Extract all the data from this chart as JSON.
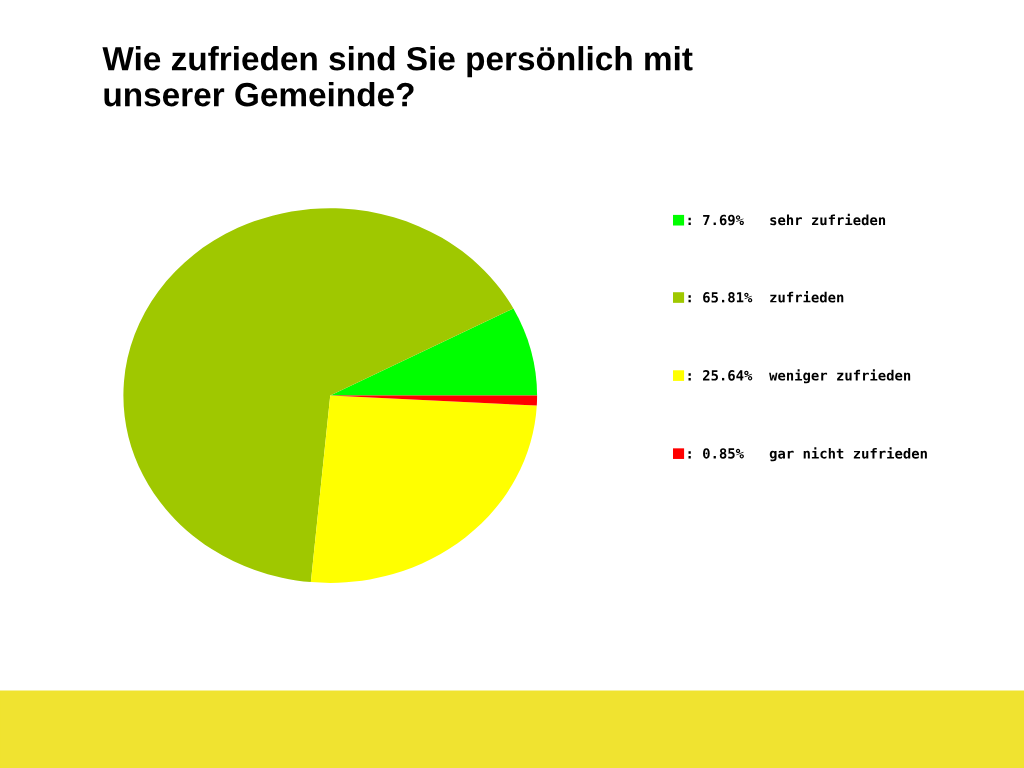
{
  "chart_data": {
    "type": "pie",
    "title": "Wie zufrieden sind Sie persönlich mit\nunserer Gemeinde?",
    "categories": [
      "sehr zufrieden",
      "zufrieden",
      "weniger zufrieden",
      "gar nicht zufrieden"
    ],
    "values": [
      7.69,
      65.81,
      25.64,
      0.85
    ],
    "value_labels": [
      ": 7.69%",
      ": 65.81%",
      ": 25.64%",
      ": 0.85%"
    ],
    "colors": [
      "#00ff00",
      "#9fc800",
      "#ffff00",
      "#ff0000"
    ],
    "legend": "right"
  }
}
